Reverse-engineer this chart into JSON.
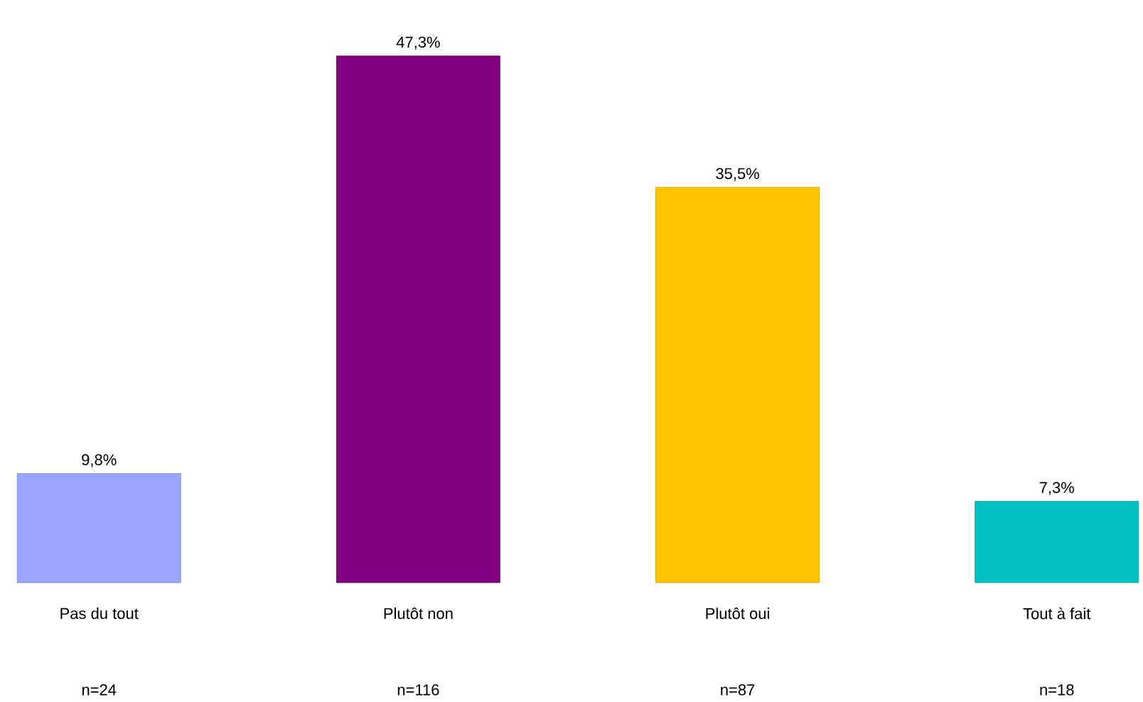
{
  "chart_data": {
    "type": "bar",
    "categories": [
      "Pas du tout",
      "Plutôt non",
      "Plutôt oui",
      "Tout à fait"
    ],
    "values": [
      9.8,
      47.3,
      35.5,
      7.3
    ],
    "value_labels": [
      "9,8%",
      "47,3%",
      "35,5%",
      "7,3%"
    ],
    "colors": [
      "#9aa6ff",
      "#800080",
      "#ffc400",
      "#00c0c0"
    ],
    "tick_labels": "x",
    "annotations": [
      "n=24",
      "n=116",
      "n=87",
      "n=18"
    ]
  }
}
